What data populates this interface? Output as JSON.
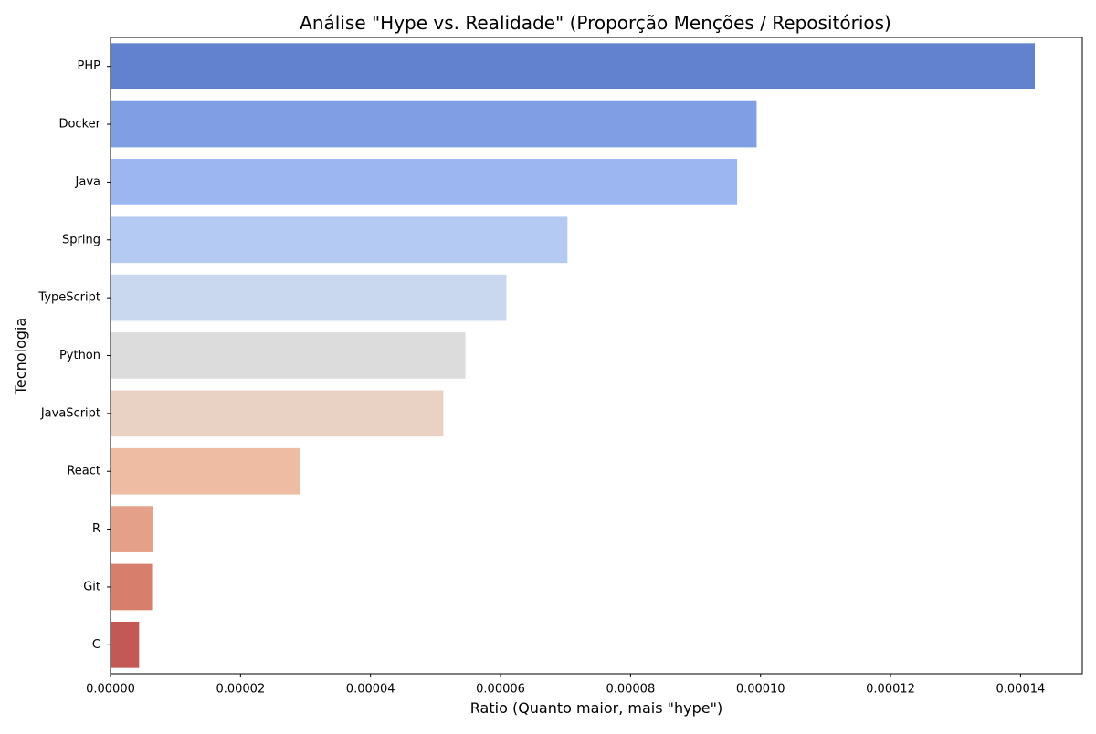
{
  "chart_data": {
    "type": "bar",
    "orientation": "horizontal",
    "title": "Análise \"Hype vs. Realidade\" (Proporção Menções / Repositórios)",
    "xlabel": "Ratio (Quanto maior, mais \"hype\")",
    "ylabel": "Tecnologia",
    "categories": [
      "PHP",
      "Docker",
      "Java",
      "Spring",
      "TypeScript",
      "Python",
      "JavaScript",
      "React",
      "R",
      "Git",
      "C"
    ],
    "values": [
      0.0001422,
      9.94e-05,
      9.64e-05,
      7.03e-05,
      6.09e-05,
      5.46e-05,
      5.12e-05,
      2.92e-05,
      6.6e-06,
      6.4e-06,
      4.4e-06
    ],
    "colors": [
      "#6282d0",
      "#7f9ee4",
      "#9bb6f1",
      "#b5caf3",
      "#cad8ef",
      "#dcdcdc",
      "#e9d1c3",
      "#eebba3",
      "#e4a088",
      "#d77f6c",
      "#c25954"
    ],
    "xlim": [
      0,
      0.0001495
    ],
    "xticks": [
      0,
      2e-05,
      4e-05,
      6e-05,
      8e-05,
      0.0001,
      0.00012,
      0.00014
    ],
    "xtick_labels": [
      "0.00000",
      "0.00002",
      "0.00004",
      "0.00006",
      "0.00008",
      "0.00010",
      "0.00012",
      "0.00014"
    ],
    "grid": false,
    "legend": "none"
  }
}
